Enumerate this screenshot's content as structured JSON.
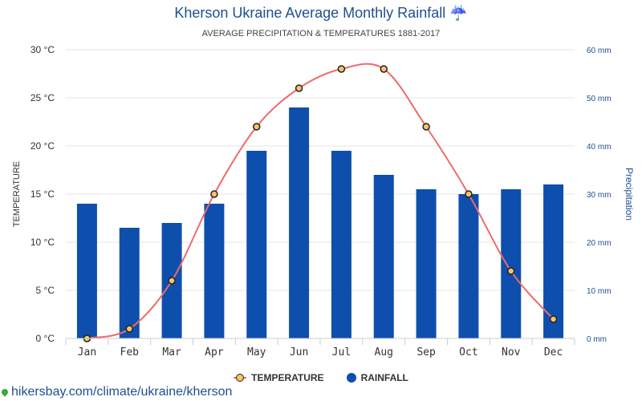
{
  "header": {
    "title": "Kherson Ukraine Average Monthly Rainfall ☔",
    "subtitle": "AVERAGE PRECIPITATION & TEMPERATURES 1881-2017"
  },
  "chart_data": {
    "type": "bar",
    "categories": [
      "Jan",
      "Feb",
      "Mar",
      "Apr",
      "May",
      "Jun",
      "Jul",
      "Aug",
      "Sep",
      "Oct",
      "Nov",
      "Dec"
    ],
    "series": [
      {
        "name": "RAINFALL",
        "type": "bar",
        "axis": "right",
        "unit": "mm",
        "color": "#0e4fad",
        "values": [
          28,
          23,
          24,
          28,
          39,
          48,
          39,
          34,
          31,
          30,
          31,
          32
        ]
      },
      {
        "name": "TEMPERATURE",
        "type": "line",
        "axis": "left",
        "unit": "°C",
        "color": "#ef6a6a",
        "marker_color": "#f5c26b",
        "values": [
          0,
          1,
          6,
          15,
          22,
          26,
          28,
          28,
          22,
          15,
          7,
          2
        ]
      }
    ],
    "y_left": {
      "label": "TEMPERATURE",
      "range": [
        0,
        30
      ],
      "ticks": [
        "0 °C",
        "5 °C",
        "10 °C",
        "15 °C",
        "20 °C",
        "25 °C",
        "30 °C"
      ]
    },
    "y_right": {
      "label": "Precipitation",
      "range": [
        0,
        60
      ],
      "ticks": [
        "0 mm",
        "10 mm",
        "20 mm",
        "30 mm",
        "40 mm",
        "50 mm",
        "60 mm"
      ]
    },
    "grid": true,
    "legend": "bottom-center"
  },
  "legend": {
    "temperature": "TEMPERATURE",
    "rainfall": "RAINFALL"
  },
  "footer": {
    "source": "hikersbay.com/climate/ukraine/kherson"
  }
}
